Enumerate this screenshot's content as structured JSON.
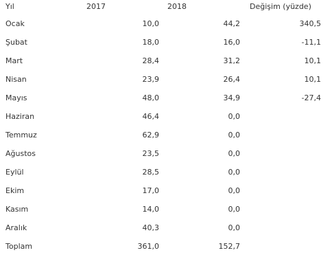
{
  "table": {
    "headers": {
      "label": "Yıl",
      "y2017": "2017",
      "y2018": "2018",
      "change": "Değişim (yüzde)"
    },
    "rows": [
      {
        "label": "Ocak",
        "y2017": "10,0",
        "y2018": "44,2",
        "change": "340,5"
      },
      {
        "label": "Şubat",
        "y2017": "18,0",
        "y2018": "16,0",
        "change": "-11,1"
      },
      {
        "label": "Mart",
        "y2017": "28,4",
        "y2018": "31,2",
        "change": "10,1"
      },
      {
        "label": "Nisan",
        "y2017": "23,9",
        "y2018": "26,4",
        "change": "10,1"
      },
      {
        "label": "Mayıs",
        "y2017": "48,0",
        "y2018": "34,9",
        "change": "-27,4"
      },
      {
        "label": "Haziran",
        "y2017": "46,4",
        "y2018": "0,0",
        "change": ""
      },
      {
        "label": "Temmuz",
        "y2017": "62,9",
        "y2018": "0,0",
        "change": ""
      },
      {
        "label": "Ağustos",
        "y2017": "23,5",
        "y2018": "0,0",
        "change": ""
      },
      {
        "label": "Eylül",
        "y2017": "28,5",
        "y2018": "0,0",
        "change": ""
      },
      {
        "label": "Ekim",
        "y2017": "17,0",
        "y2018": "0,0",
        "change": ""
      },
      {
        "label": "Kasım",
        "y2017": "14,0",
        "y2018": "0,0",
        "change": ""
      },
      {
        "label": "Aralık",
        "y2017": "40,3",
        "y2018": "0,0",
        "change": ""
      },
      {
        "label": "Toplam",
        "y2017": "361,0",
        "y2018": "152,7",
        "change": ""
      }
    ]
  }
}
